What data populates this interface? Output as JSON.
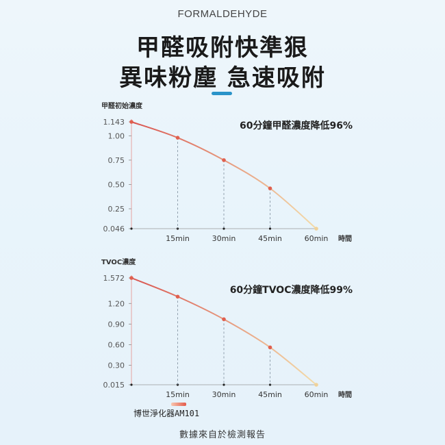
{
  "header": {
    "subtitle": "FORMALDEHYDE",
    "title_line1": "甲醛吸附快準狠",
    "title_line2": "異味粉塵 急速吸附"
  },
  "colors": {
    "accent": "#2a93c9",
    "curve_start": "#d9534f",
    "curve_end": "#f1d9a8",
    "point": "#e0604f"
  },
  "chart_data": [
    {
      "type": "line",
      "ylabel": "甲醛初始濃度",
      "xlabel": "時間",
      "annotation": "60分鐘甲醛濃度降低96%",
      "categories": [
        "",
        "15min",
        "30min",
        "45min",
        "60min"
      ],
      "x": [
        0,
        15,
        30,
        45,
        60
      ],
      "y": [
        1.143,
        0.98,
        0.75,
        0.46,
        0.046
      ],
      "yticks": [
        "1.143",
        "1.00",
        "0.75",
        "0.50",
        "0.25",
        "0.046"
      ],
      "ytick_values": [
        1.143,
        1.0,
        0.75,
        0.5,
        0.25,
        0.046
      ],
      "ylim": [
        0.046,
        1.143
      ],
      "xlim": [
        0,
        60
      ],
      "grid": false
    },
    {
      "type": "line",
      "ylabel": "TVOC濃度",
      "xlabel": "時間",
      "annotation": "60分鐘TVOC濃度降低99%",
      "legend": "博世淨化器AM101",
      "categories": [
        "",
        "15min",
        "30min",
        "45min",
        "60min"
      ],
      "x": [
        0,
        15,
        30,
        45,
        60
      ],
      "y": [
        1.572,
        1.3,
        0.97,
        0.56,
        0.015
      ],
      "yticks": [
        "1.572",
        "1.20",
        "0.90",
        "0.60",
        "0.30",
        "0.015"
      ],
      "ytick_values": [
        1.572,
        1.2,
        0.9,
        0.6,
        0.3,
        0.015
      ],
      "ylim": [
        0.015,
        1.572
      ],
      "xlim": [
        0,
        60
      ],
      "grid": false
    }
  ],
  "footer": {
    "source": "數據來自於檢測報告"
  }
}
